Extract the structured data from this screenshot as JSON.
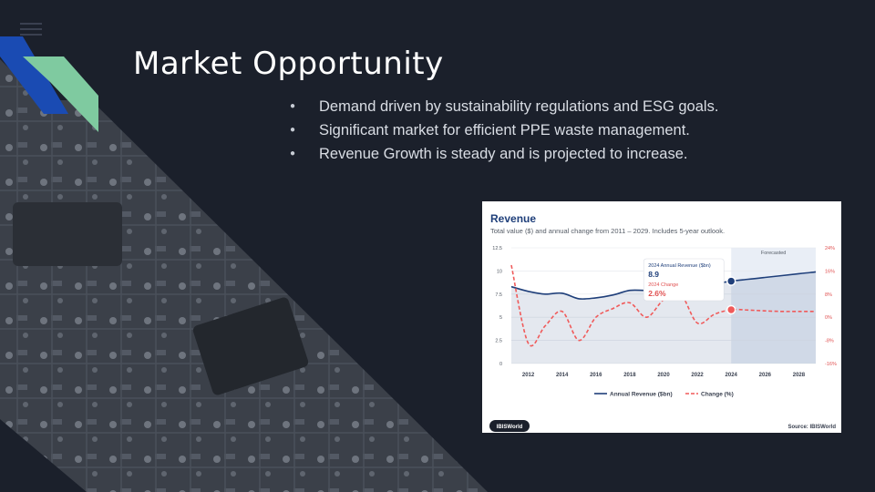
{
  "slide": {
    "title": "Market Opportunity",
    "bullets": [
      "Demand driven by sustainability regulations and ESG goals.",
      "Significant market for efficient PPE waste management.",
      "Revenue Growth is steady and is projected to increase."
    ],
    "image_description": "Close-up photograph of a circuit board with resistors labeled 475, R3, R4, R5"
  },
  "colors": {
    "background": "#1b202b",
    "accent_blue": "#1a4bb3",
    "accent_green": "#7fcaa0",
    "revenue_line": "#1f3f7a",
    "change_line": "#f05a5a"
  },
  "chart_data": {
    "type": "line",
    "title": "Revenue",
    "subtitle": "Total value ($) and annual change from 2011 – 2029. Includes 5-year outlook.",
    "x_ticks": [
      "2012",
      "2014",
      "2016",
      "2018",
      "2020",
      "2022",
      "2024",
      "2026",
      "2028"
    ],
    "y_left_ticks": [
      "12.5",
      "10",
      "7.5",
      "5",
      "2.5",
      "0"
    ],
    "y_right_ticks": [
      "24%",
      "16%",
      "8%",
      "0%",
      "-8%",
      "-16%"
    ],
    "ylim_left": [
      0,
      12.5
    ],
    "ylim_right": [
      -16,
      24
    ],
    "forecast_label": "Forecasted",
    "forecast_start": 2024,
    "series": [
      {
        "name": "Annual Revenue ($bn)",
        "axis": "left",
        "x": [
          2011,
          2012,
          2013,
          2014,
          2015,
          2016,
          2017,
          2018,
          2019,
          2020,
          2021,
          2022,
          2023,
          2024,
          2025,
          2026,
          2027,
          2028,
          2029
        ],
        "values": [
          8.3,
          7.8,
          7.5,
          7.6,
          7.0,
          7.1,
          7.4,
          7.9,
          7.9,
          8.0,
          8.3,
          8.4,
          8.6,
          8.9,
          9.1,
          9.3,
          9.5,
          9.7,
          9.9
        ]
      },
      {
        "name": "Change (%)",
        "axis": "right",
        "x": [
          2011,
          2012,
          2013,
          2014,
          2015,
          2016,
          2017,
          2018,
          2019,
          2020,
          2021,
          2022,
          2023,
          2024,
          2025,
          2026,
          2027,
          2028,
          2029
        ],
        "values": [
          18,
          -9,
          -3,
          2,
          -8,
          0,
          3,
          5,
          0,
          6,
          8,
          -2,
          1,
          2.6,
          2.5,
          2.2,
          2.0,
          2.0,
          2.0
        ]
      }
    ],
    "tooltip": {
      "year": "2024",
      "revenue_label": "2024 Annual Revenue ($bn)",
      "revenue_value": "8.9",
      "change_label": "2024 Change",
      "change_value": "2.6%"
    },
    "logo": "IBISWorld",
    "source": "Source: IBISWorld"
  }
}
